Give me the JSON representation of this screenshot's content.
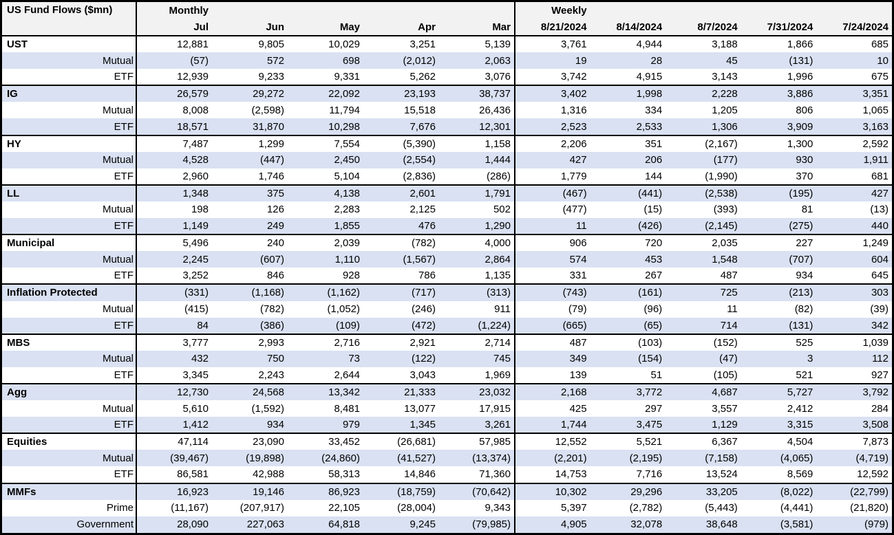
{
  "colors": {
    "stripe_row": "#d9e1f2",
    "header_bg": "#f2f2f2",
    "border": "#000000"
  },
  "chart_data": {
    "type": "table",
    "title": "US Fund Flows ($mn)",
    "column_groups": [
      {
        "label": "Monthly",
        "columns": [
          "Jul",
          "Jun",
          "May",
          "Apr",
          "Mar"
        ]
      },
      {
        "label": "Weekly",
        "columns": [
          "8/21/2024",
          "8/14/2024",
          "8/7/2024",
          "7/31/2024",
          "7/24/2024"
        ]
      }
    ],
    "rows": [
      {
        "label": "UST",
        "level": "group",
        "monthly": [
          "12,881",
          "9,805",
          "10,029",
          "3,251",
          "5,139"
        ],
        "weekly": [
          "3,761",
          "4,944",
          "3,188",
          "1,866",
          "685"
        ]
      },
      {
        "label": "Mutual",
        "level": "sub",
        "monthly": [
          "(57)",
          "572",
          "698",
          "(2,012)",
          "2,063"
        ],
        "weekly": [
          "19",
          "28",
          "45",
          "(131)",
          "10"
        ]
      },
      {
        "label": "ETF",
        "level": "sub",
        "monthly": [
          "12,939",
          "9,233",
          "9,331",
          "5,262",
          "3,076"
        ],
        "weekly": [
          "3,742",
          "4,915",
          "3,143",
          "1,996",
          "675"
        ]
      },
      {
        "label": "IG",
        "level": "group",
        "monthly": [
          "26,579",
          "29,272",
          "22,092",
          "23,193",
          "38,737"
        ],
        "weekly": [
          "3,402",
          "1,998",
          "2,228",
          "3,886",
          "3,351"
        ]
      },
      {
        "label": "Mutual",
        "level": "sub",
        "monthly": [
          "8,008",
          "(2,598)",
          "11,794",
          "15,518",
          "26,436"
        ],
        "weekly": [
          "1,316",
          "334",
          "1,205",
          "806",
          "1,065"
        ]
      },
      {
        "label": "ETF",
        "level": "sub",
        "monthly": [
          "18,571",
          "31,870",
          "10,298",
          "7,676",
          "12,301"
        ],
        "weekly": [
          "2,523",
          "2,533",
          "1,306",
          "3,909",
          "3,163"
        ]
      },
      {
        "label": "HY",
        "level": "group",
        "monthly": [
          "7,487",
          "1,299",
          "7,554",
          "(5,390)",
          "1,158"
        ],
        "weekly": [
          "2,206",
          "351",
          "(2,167)",
          "1,300",
          "2,592"
        ]
      },
      {
        "label": "Mutual",
        "level": "sub",
        "monthly": [
          "4,528",
          "(447)",
          "2,450",
          "(2,554)",
          "1,444"
        ],
        "weekly": [
          "427",
          "206",
          "(177)",
          "930",
          "1,911"
        ]
      },
      {
        "label": "ETF",
        "level": "sub",
        "monthly": [
          "2,960",
          "1,746",
          "5,104",
          "(2,836)",
          "(286)"
        ],
        "weekly": [
          "1,779",
          "144",
          "(1,990)",
          "370",
          "681"
        ]
      },
      {
        "label": "LL",
        "level": "group",
        "monthly": [
          "1,348",
          "375",
          "4,138",
          "2,601",
          "1,791"
        ],
        "weekly": [
          "(467)",
          "(441)",
          "(2,538)",
          "(195)",
          "427"
        ]
      },
      {
        "label": "Mutual",
        "level": "sub",
        "monthly": [
          "198",
          "126",
          "2,283",
          "2,125",
          "502"
        ],
        "weekly": [
          "(477)",
          "(15)",
          "(393)",
          "81",
          "(13)"
        ]
      },
      {
        "label": "ETF",
        "level": "sub",
        "monthly": [
          "1,149",
          "249",
          "1,855",
          "476",
          "1,290"
        ],
        "weekly": [
          "11",
          "(426)",
          "(2,145)",
          "(275)",
          "440"
        ]
      },
      {
        "label": "Municipal",
        "level": "group",
        "monthly": [
          "5,496",
          "240",
          "2,039",
          "(782)",
          "4,000"
        ],
        "weekly": [
          "906",
          "720",
          "2,035",
          "227",
          "1,249"
        ]
      },
      {
        "label": "Mutual",
        "level": "sub",
        "monthly": [
          "2,245",
          "(607)",
          "1,110",
          "(1,567)",
          "2,864"
        ],
        "weekly": [
          "574",
          "453",
          "1,548",
          "(707)",
          "604"
        ]
      },
      {
        "label": "ETF",
        "level": "sub",
        "monthly": [
          "3,252",
          "846",
          "928",
          "786",
          "1,135"
        ],
        "weekly": [
          "331",
          "267",
          "487",
          "934",
          "645"
        ]
      },
      {
        "label": "Inflation Protected",
        "level": "group",
        "monthly": [
          "(331)",
          "(1,168)",
          "(1,162)",
          "(717)",
          "(313)"
        ],
        "weekly": [
          "(743)",
          "(161)",
          "725",
          "(213)",
          "303"
        ]
      },
      {
        "label": "Mutual",
        "level": "sub",
        "monthly": [
          "(415)",
          "(782)",
          "(1,052)",
          "(246)",
          "911"
        ],
        "weekly": [
          "(79)",
          "(96)",
          "11",
          "(82)",
          "(39)"
        ]
      },
      {
        "label": "ETF",
        "level": "sub",
        "monthly": [
          "84",
          "(386)",
          "(109)",
          "(472)",
          "(1,224)"
        ],
        "weekly": [
          "(665)",
          "(65)",
          "714",
          "(131)",
          "342"
        ]
      },
      {
        "label": "MBS",
        "level": "group",
        "monthly": [
          "3,777",
          "2,993",
          "2,716",
          "2,921",
          "2,714"
        ],
        "weekly": [
          "487",
          "(103)",
          "(152)",
          "525",
          "1,039"
        ]
      },
      {
        "label": "Mutual",
        "level": "sub",
        "monthly": [
          "432",
          "750",
          "73",
          "(122)",
          "745"
        ],
        "weekly": [
          "349",
          "(154)",
          "(47)",
          "3",
          "112"
        ]
      },
      {
        "label": "ETF",
        "level": "sub",
        "monthly": [
          "3,345",
          "2,243",
          "2,644",
          "3,043",
          "1,969"
        ],
        "weekly": [
          "139",
          "51",
          "(105)",
          "521",
          "927"
        ]
      },
      {
        "label": "Agg",
        "level": "group",
        "monthly": [
          "12,730",
          "24,568",
          "13,342",
          "21,333",
          "23,032"
        ],
        "weekly": [
          "2,168",
          "3,772",
          "4,687",
          "5,727",
          "3,792"
        ]
      },
      {
        "label": "Mutual",
        "level": "sub",
        "monthly": [
          "5,610",
          "(1,592)",
          "8,481",
          "13,077",
          "17,915"
        ],
        "weekly": [
          "425",
          "297",
          "3,557",
          "2,412",
          "284"
        ]
      },
      {
        "label": "ETF",
        "level": "sub",
        "monthly": [
          "1,412",
          "934",
          "979",
          "1,345",
          "3,261"
        ],
        "weekly": [
          "1,744",
          "3,475",
          "1,129",
          "3,315",
          "3,508"
        ]
      },
      {
        "label": "Equities",
        "level": "group",
        "monthly": [
          "47,114",
          "23,090",
          "33,452",
          "(26,681)",
          "57,985"
        ],
        "weekly": [
          "12,552",
          "5,521",
          "6,367",
          "4,504",
          "7,873"
        ]
      },
      {
        "label": "Mutual",
        "level": "sub",
        "monthly": [
          "(39,467)",
          "(19,898)",
          "(24,860)",
          "(41,527)",
          "(13,374)"
        ],
        "weekly": [
          "(2,201)",
          "(2,195)",
          "(7,158)",
          "(4,065)",
          "(4,719)"
        ]
      },
      {
        "label": "ETF",
        "level": "sub",
        "monthly": [
          "86,581",
          "42,988",
          "58,313",
          "14,846",
          "71,360"
        ],
        "weekly": [
          "14,753",
          "7,716",
          "13,524",
          "8,569",
          "12,592"
        ]
      },
      {
        "label": "MMFs",
        "level": "group",
        "monthly": [
          "16,923",
          "19,146",
          "86,923",
          "(18,759)",
          "(70,642)"
        ],
        "weekly": [
          "10,302",
          "29,296",
          "33,205",
          "(8,022)",
          "(22,799)"
        ]
      },
      {
        "label": "Prime",
        "level": "sub",
        "monthly": [
          "(11,167)",
          "(207,917)",
          "22,105",
          "(28,004)",
          "9,343"
        ],
        "weekly": [
          "5,397",
          "(2,782)",
          "(5,443)",
          "(4,441)",
          "(21,820)"
        ]
      },
      {
        "label": "Government",
        "level": "sub",
        "monthly": [
          "28,090",
          "227,063",
          "64,818",
          "9,245",
          "(79,985)"
        ],
        "weekly": [
          "4,905",
          "32,078",
          "38,648",
          "(3,581)",
          "(979)"
        ]
      }
    ]
  }
}
